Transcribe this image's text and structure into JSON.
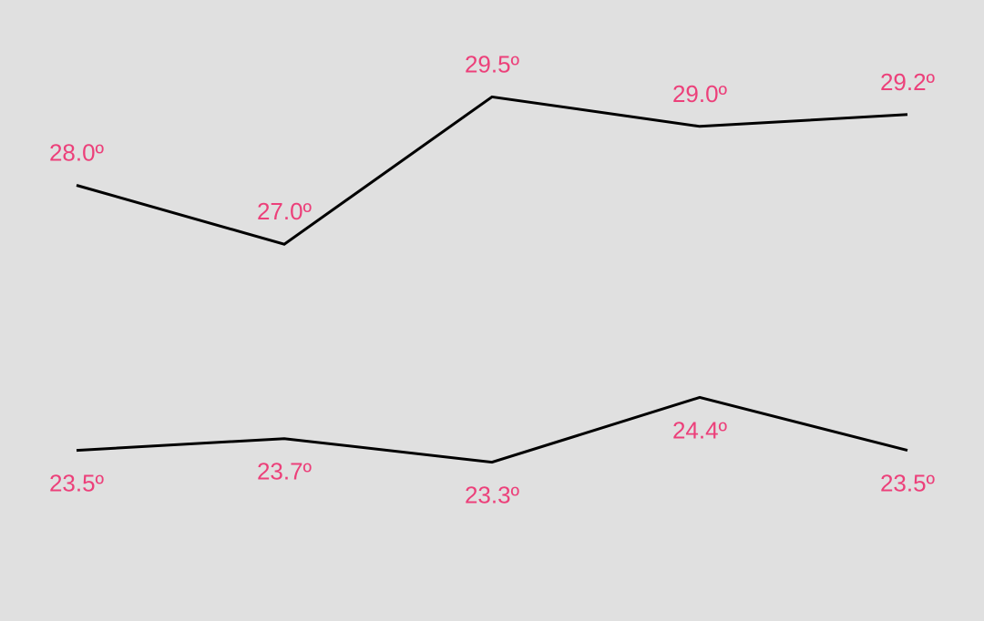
{
  "colors": {
    "background": "#e0e0e0",
    "line": "#000000",
    "label": "#ec407a"
  },
  "chart_data": {
    "type": "line",
    "grid": false,
    "legend": "none",
    "x": [
      1,
      2,
      3,
      4,
      5
    ],
    "ylim": [
      23.0,
      29.8
    ],
    "series": [
      {
        "values": [
          28.0,
          27.0,
          29.5,
          29.0,
          29.2
        ],
        "labels": [
          "28.0º",
          "27.0º",
          "29.5º",
          "29.0º",
          "29.2º"
        ],
        "label_position": "above"
      },
      {
        "values": [
          23.5,
          23.7,
          23.3,
          24.4,
          23.5
        ],
        "labels": [
          "23.5º",
          "23.7º",
          "23.3º",
          "24.4º",
          "23.5º"
        ],
        "label_position": "below"
      }
    ]
  }
}
